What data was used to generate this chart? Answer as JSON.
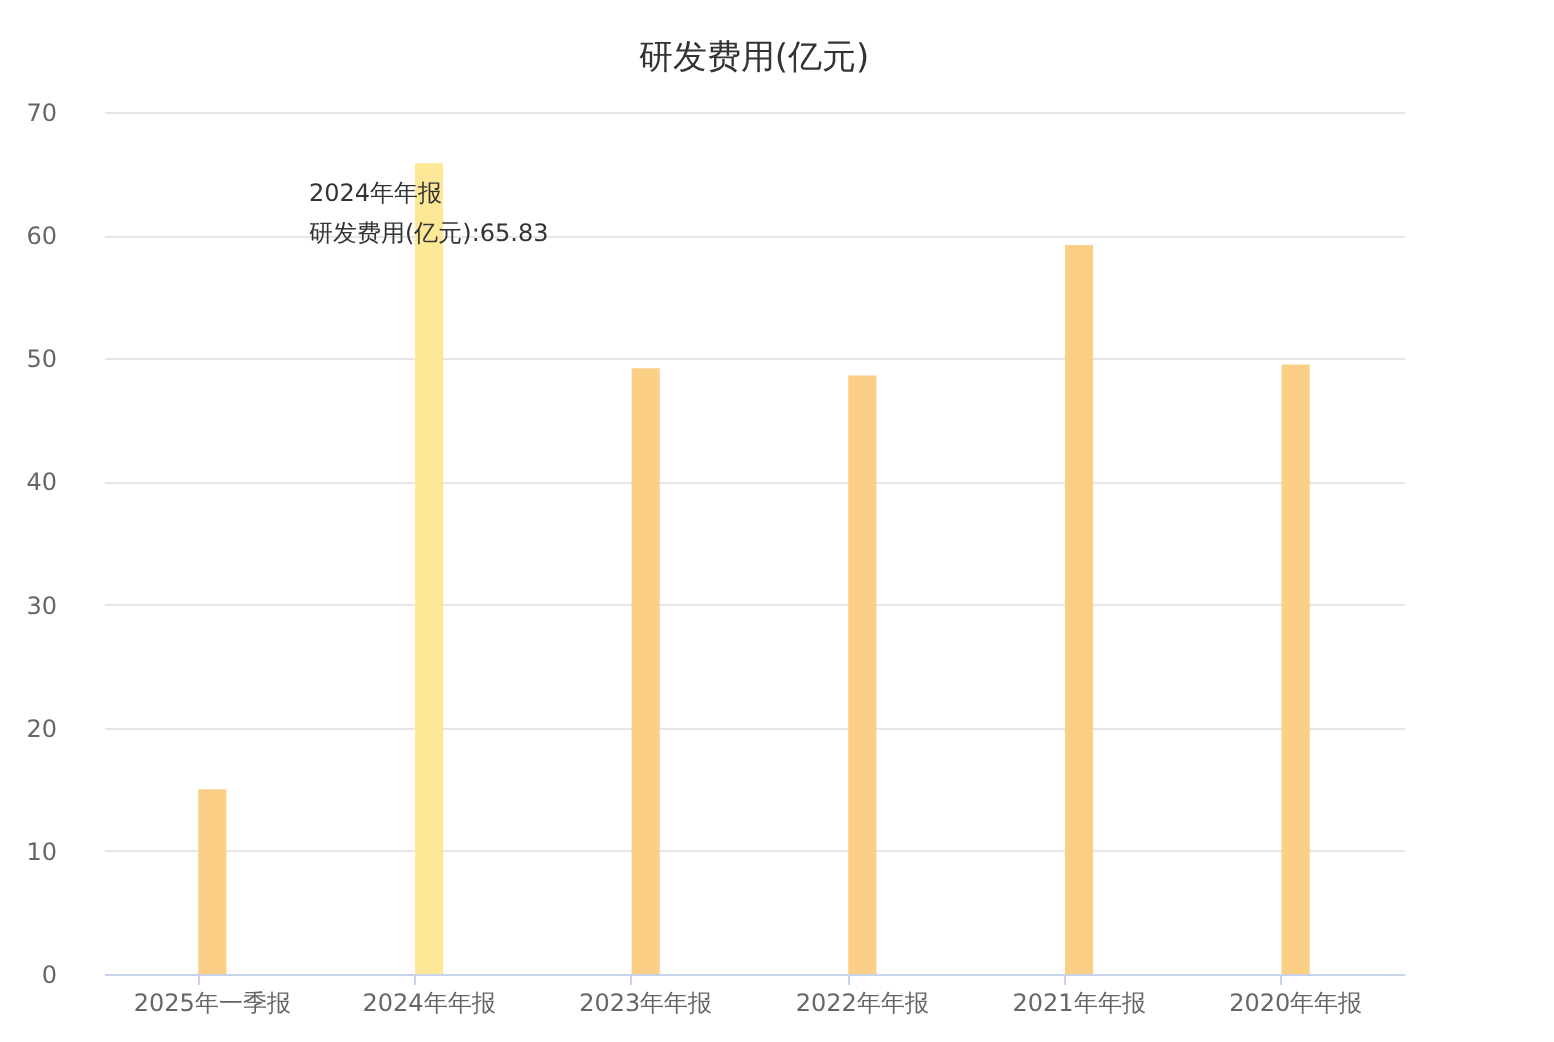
{
  "chart_data": {
    "type": "bar",
    "title": "研发费用(亿元)",
    "categories": [
      "2025年一季报",
      "2024年年报",
      "2023年年报",
      "2022年年报",
      "2021年年报",
      "2020年年报"
    ],
    "values": [
      15.0,
      65.83,
      49.2,
      48.6,
      59.2,
      49.5
    ],
    "colors": [
      "#fbd086",
      "#fde897",
      "#fbd086",
      "#fbd086",
      "#fbd086",
      "#fbd086"
    ],
    "ylim": [
      0,
      70
    ],
    "yticks": [
      0,
      10,
      20,
      30,
      40,
      50,
      60,
      70
    ],
    "grid": "y",
    "annotations": [
      {
        "text": "2024年年报",
        "x": "2024年年报",
        "y": 65.83
      },
      {
        "text": "研发费用(亿元):65.83",
        "x": "2024年年报",
        "y": 65.83
      }
    ]
  }
}
